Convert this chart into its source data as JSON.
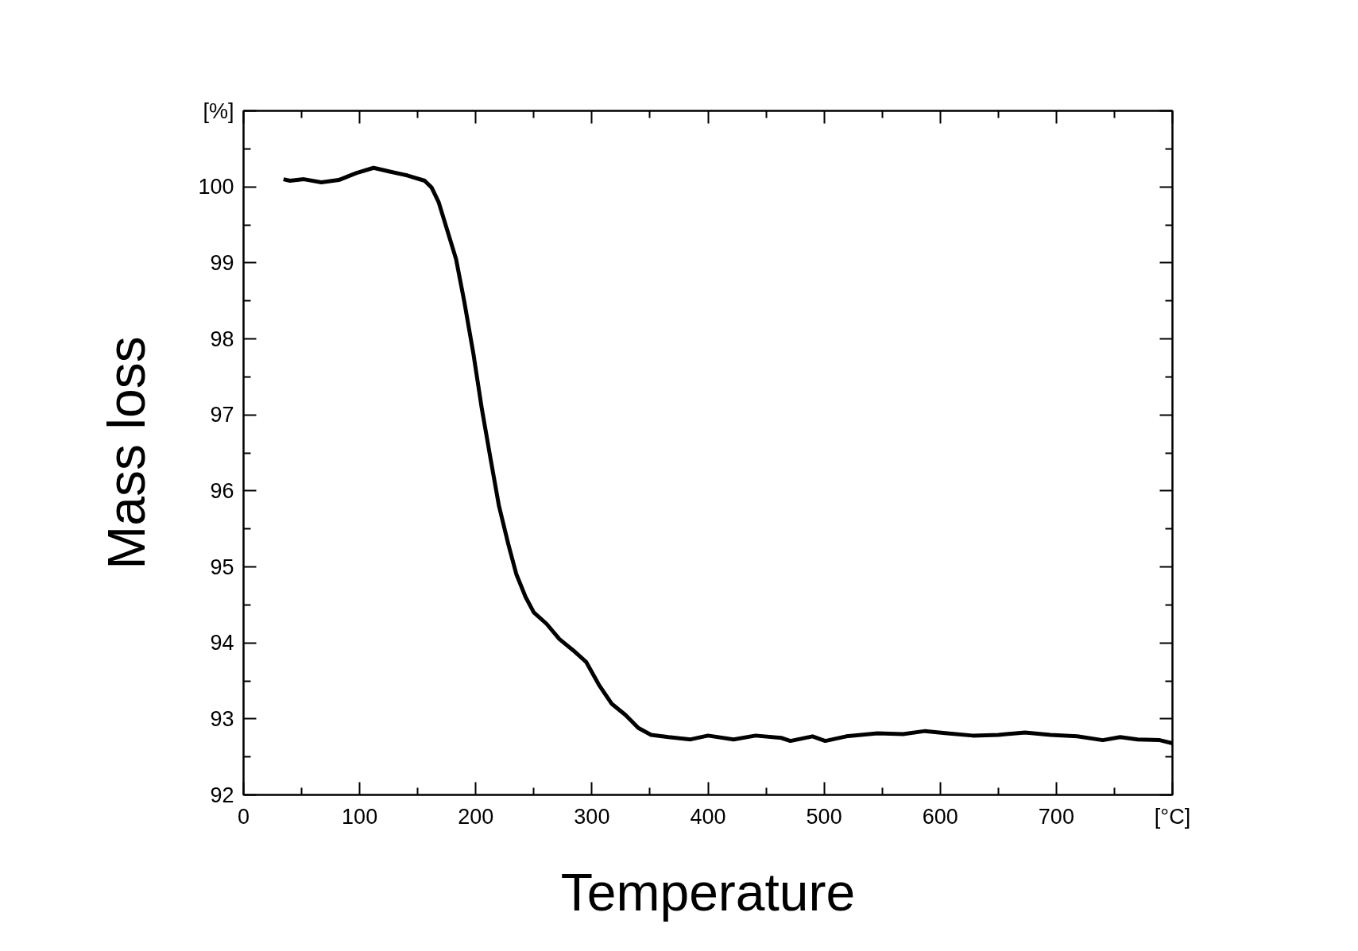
{
  "chart_data": {
    "type": "line",
    "xlabel": "Temperature",
    "ylabel": "Mass loss",
    "xlim": [
      0,
      800
    ],
    "ylim": [
      92,
      101
    ],
    "xticks": [
      0,
      100,
      200,
      300,
      400,
      500,
      600,
      700,
      {
        "value": 800,
        "label": "[°C]"
      }
    ],
    "yticks": [
      92,
      93,
      94,
      95,
      96,
      97,
      98,
      99,
      100,
      {
        "value": 101,
        "label": "[%]"
      }
    ],
    "grid": false,
    "marker": "none",
    "line_style": "solid",
    "series": [
      {
        "color": "#000000",
        "x": [
          34.4,
          40,
          52,
          67,
          82,
          97,
          112,
          126,
          141,
          156,
          162,
          168,
          175,
          183,
          190,
          198,
          205,
          213,
          220,
          228,
          235,
          243,
          250,
          261,
          272,
          284,
          295,
          306,
          317,
          329,
          340,
          351,
          366,
          385,
          400,
          422,
          441,
          463,
          471,
          490,
          501,
          519,
          546,
          568,
          587,
          606,
          628,
          650,
          673,
          695,
          718,
          740,
          755,
          770,
          789,
          800
        ],
        "values": [
          100.1,
          100.08,
          100.1,
          100.06,
          100.09,
          100.18,
          100.25,
          100.2,
          100.15,
          100.08,
          99.99,
          99.8,
          99.45,
          99.05,
          98.5,
          97.8,
          97.1,
          96.4,
          95.8,
          95.3,
          94.9,
          94.6,
          94.4,
          94.25,
          94.05,
          93.9,
          93.75,
          93.45,
          93.2,
          93.05,
          92.88,
          92.79,
          92.76,
          92.73,
          92.78,
          92.73,
          92.78,
          92.75,
          92.71,
          92.77,
          92.71,
          92.77,
          92.81,
          92.8,
          92.84,
          92.81,
          92.78,
          92.79,
          92.82,
          92.79,
          92.77,
          92.72,
          92.76,
          92.73,
          92.72,
          92.68
        ]
      }
    ]
  }
}
